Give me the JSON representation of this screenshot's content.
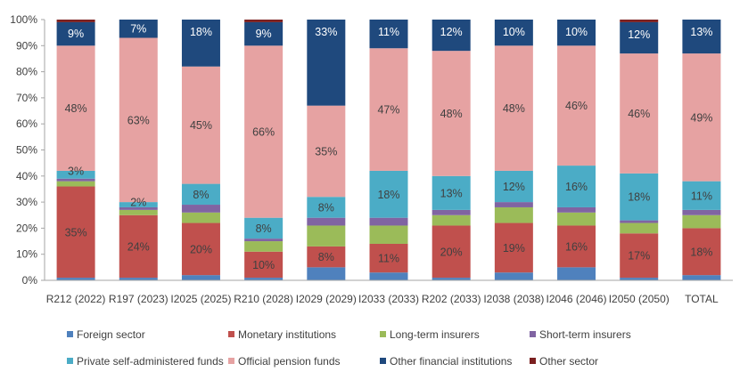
{
  "chart_data": {
    "type": "bar",
    "stacked": true,
    "percent": true,
    "ylim": [
      0,
      100
    ],
    "yticks": [
      "0%",
      "10%",
      "20%",
      "30%",
      "40%",
      "50%",
      "60%",
      "70%",
      "80%",
      "90%",
      "100%"
    ],
    "grid": false,
    "legend_position": "bottom",
    "categories": [
      "R212 (2022)",
      "R197 (2023)",
      "I2025 (2025)",
      "R210 (2028)",
      "I2029 (2029)",
      "I2033 (2033)",
      "R202 (2033)",
      "I2038 (2038)",
      "I2046 (2046)",
      "I2050 (2050)",
      "TOTAL"
    ],
    "series": [
      {
        "name": "Foreign sector",
        "color": "#4f81bd",
        "values": [
          1,
          1,
          2,
          1,
          5,
          3,
          1,
          3,
          5,
          1,
          2
        ]
      },
      {
        "name": "Monetary institutions",
        "color": "#c0504d",
        "values": [
          35,
          24,
          20,
          10,
          8,
          11,
          20,
          19,
          16,
          17,
          18
        ]
      },
      {
        "name": "Long-term insurers",
        "color": "#9bbb59",
        "values": [
          2,
          2,
          4,
          4,
          8,
          7,
          4,
          6,
          5,
          4,
          5
        ]
      },
      {
        "name": "Short-term insurers",
        "color": "#8064a2",
        "values": [
          1,
          1,
          3,
          1,
          3,
          3,
          2,
          2,
          2,
          1,
          2
        ]
      },
      {
        "name": "Private self-administered funds",
        "color": "#4bacc6",
        "values": [
          3,
          2,
          8,
          8,
          8,
          18,
          13,
          12,
          16,
          18,
          11
        ]
      },
      {
        "name": "Official pension funds",
        "color": "#e6a2a2",
        "values": [
          48,
          63,
          45,
          66,
          35,
          47,
          48,
          48,
          46,
          46,
          49
        ]
      },
      {
        "name": "Other financial institutions",
        "color": "#1f497d",
        "values": [
          9,
          7,
          18,
          9,
          33,
          11,
          12,
          10,
          10,
          12,
          13
        ]
      },
      {
        "name": "Other sector",
        "color": "#7b2020",
        "values": [
          1,
          0,
          0,
          1,
          0,
          0,
          0,
          0,
          0,
          1,
          0
        ]
      }
    ],
    "data_labels": [
      {
        "bar": 0,
        "series": 1,
        "text": "35%"
      },
      {
        "bar": 0,
        "series": 4,
        "text": "3%"
      },
      {
        "bar": 0,
        "series": 5,
        "text": "48%"
      },
      {
        "bar": 0,
        "series": 6,
        "text": "9%"
      },
      {
        "bar": 1,
        "series": 1,
        "text": "24%"
      },
      {
        "bar": 1,
        "series": 4,
        "text": "2%"
      },
      {
        "bar": 1,
        "series": 5,
        "text": "63%"
      },
      {
        "bar": 1,
        "series": 6,
        "text": "7%"
      },
      {
        "bar": 2,
        "series": 1,
        "text": "20%"
      },
      {
        "bar": 2,
        "series": 4,
        "text": "8%"
      },
      {
        "bar": 2,
        "series": 5,
        "text": "45%"
      },
      {
        "bar": 2,
        "series": 6,
        "text": "18%"
      },
      {
        "bar": 3,
        "series": 1,
        "text": "10%"
      },
      {
        "bar": 3,
        "series": 4,
        "text": "8%"
      },
      {
        "bar": 3,
        "series": 5,
        "text": "66%"
      },
      {
        "bar": 3,
        "series": 6,
        "text": "9%"
      },
      {
        "bar": 4,
        "series": 1,
        "text": "8%"
      },
      {
        "bar": 4,
        "series": 4,
        "text": "8%"
      },
      {
        "bar": 4,
        "series": 5,
        "text": "35%"
      },
      {
        "bar": 4,
        "series": 6,
        "text": "33%"
      },
      {
        "bar": 5,
        "series": 1,
        "text": "11%"
      },
      {
        "bar": 5,
        "series": 4,
        "text": "18%"
      },
      {
        "bar": 5,
        "series": 5,
        "text": "47%"
      },
      {
        "bar": 5,
        "series": 6,
        "text": "11%"
      },
      {
        "bar": 6,
        "series": 1,
        "text": "20%"
      },
      {
        "bar": 6,
        "series": 4,
        "text": "13%"
      },
      {
        "bar": 6,
        "series": 5,
        "text": "48%"
      },
      {
        "bar": 6,
        "series": 6,
        "text": "12%"
      },
      {
        "bar": 7,
        "series": 1,
        "text": "19%"
      },
      {
        "bar": 7,
        "series": 4,
        "text": "12%"
      },
      {
        "bar": 7,
        "series": 5,
        "text": "48%"
      },
      {
        "bar": 7,
        "series": 6,
        "text": "10%"
      },
      {
        "bar": 8,
        "series": 1,
        "text": "16%"
      },
      {
        "bar": 8,
        "series": 4,
        "text": "16%"
      },
      {
        "bar": 8,
        "series": 5,
        "text": "46%"
      },
      {
        "bar": 8,
        "series": 6,
        "text": "10%"
      },
      {
        "bar": 9,
        "series": 1,
        "text": "17%"
      },
      {
        "bar": 9,
        "series": 4,
        "text": "18%"
      },
      {
        "bar": 9,
        "series": 5,
        "text": "46%"
      },
      {
        "bar": 9,
        "series": 6,
        "text": "12%"
      },
      {
        "bar": 10,
        "series": 1,
        "text": "18%"
      },
      {
        "bar": 10,
        "series": 4,
        "text": "11%"
      },
      {
        "bar": 10,
        "series": 5,
        "text": "49%"
      },
      {
        "bar": 10,
        "series": 6,
        "text": "13%"
      }
    ]
  }
}
